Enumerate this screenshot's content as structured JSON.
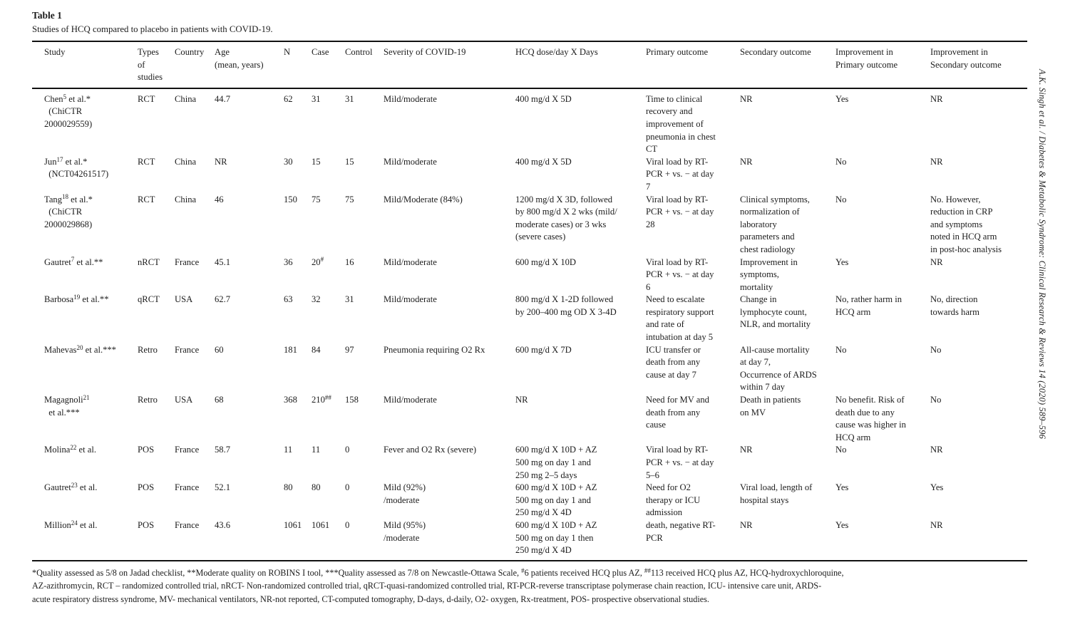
{
  "page": {
    "title": "Table 1",
    "caption": "Studies of HCQ compared to placebo in patients with COVID-19.",
    "journal_sidenote": "A.K. Singh et al. / Diabetes & Metabolic Syndrome: Clinical Research & Reviews 14 (2020) 589–596",
    "colors": {
      "text": "#1c1c1c",
      "rule": "#111111",
      "background": "#ffffff"
    }
  },
  "table": {
    "columns": [
      {
        "key": "study",
        "label": "Study"
      },
      {
        "key": "type",
        "label": "Types\nof\nstudies"
      },
      {
        "key": "country",
        "label": "Country"
      },
      {
        "key": "age",
        "label": "Age\n(mean, years)"
      },
      {
        "key": "n",
        "label": "N"
      },
      {
        "key": "cases",
        "label": "Case"
      },
      {
        "key": "control",
        "label": "Control"
      },
      {
        "key": "severity",
        "label": "Severity of COVID-19"
      },
      {
        "key": "dose",
        "label": "HCQ dose/day X Days"
      },
      {
        "key": "primary_outcome",
        "label": "Primary outcome"
      },
      {
        "key": "secondary_outcome",
        "label": "Secondary outcome"
      },
      {
        "key": "improvement_primary",
        "label": "Improvement in\nPrimary outcome"
      },
      {
        "key": "improvement_secondary",
        "label": "Improvement in\nSecondary outcome"
      }
    ],
    "rows": [
      {
        "study": "Chen^{5} et al.*\n  (ChiCTR\n2000029559)",
        "type": "RCT",
        "country": "China",
        "age": "44.7",
        "n": "62",
        "cases": "31",
        "control": "31",
        "severity": "Mild/moderate",
        "dose": "400 mg/d X 5D",
        "primary_outcome": "Time to clinical\nrecovery and\nimprovement of\npneumonia in chest\nCT",
        "secondary_outcome": "NR",
        "improvement_primary": "Yes",
        "improvement_secondary": "NR"
      },
      {
        "study": "Jun^{17} et al.*\n  (NCT04261517)",
        "type": "RCT",
        "country": "China",
        "age": "NR",
        "n": "30",
        "cases": "15",
        "control": "15",
        "severity": "Mild/moderate",
        "dose": "400 mg/d X 5D",
        "primary_outcome": "Viral load by RT-\nPCR + vs. − at day\n7",
        "secondary_outcome": "NR",
        "improvement_primary": "No",
        "improvement_secondary": "NR"
      },
      {
        "study": "Tang^{18} et al.*\n  (ChiCTR\n2000029868)",
        "type": "RCT",
        "country": "China",
        "age": "46",
        "n": "150",
        "cases": "75",
        "control": "75",
        "severity": "Mild/Moderate (84%)",
        "dose": "1200 mg/d X 3D, followed\nby 800 mg/d X 2 wks (mild/\nmoderate cases) or 3 wks\n(severe cases)",
        "primary_outcome": "Viral load by RT-\nPCR + vs. − at day\n28",
        "secondary_outcome": "Clinical symptoms,\nnormalization of\nlaboratory\nparameters and\nchest radiology",
        "improvement_primary": "No",
        "improvement_secondary": "No. However,\nreduction in CRP\nand symptoms\nnoted in HCQ arm\nin post-hoc analysis"
      },
      {
        "study": "Gautret^{7} et al.**",
        "type": "nRCT",
        "country": "France",
        "age": "45.1",
        "n": "36",
        "cases": "20^{#}",
        "control": "16",
        "severity": "Mild/moderate",
        "dose": "600 mg/d X 10D",
        "primary_outcome": "Viral load by RT-\nPCR + vs. − at day\n6",
        "secondary_outcome": "Improvement in\nsymptoms,\nmortality",
        "improvement_primary": "Yes",
        "improvement_secondary": "NR"
      },
      {
        "study": "Barbosa^{19} et al.**",
        "type": "qRCT",
        "country": "USA",
        "age": "62.7",
        "n": "63",
        "cases": "32",
        "control": "31",
        "severity": "Mild/moderate",
        "dose": "800 mg/d X 1-2D followed\nby 200–400 mg OD X 3-4D",
        "primary_outcome": "Need to escalate\nrespiratory support\nand rate of\nintubation at day 5",
        "secondary_outcome": "Change in\nlymphocyte count,\nNLR, and mortality",
        "improvement_primary": "No, rather harm in\nHCQ arm",
        "improvement_secondary": "No, direction\ntowards harm"
      },
      {
        "study": "Mahevas^{20} et al.***",
        "type": "Retro",
        "country": "France",
        "age": "60",
        "n": "181",
        "cases": "84",
        "control": "97",
        "severity": "Pneumonia requiring O2 Rx",
        "dose": "600 mg/d X 7D",
        "primary_outcome": "ICU transfer or\ndeath from any\ncause at day 7",
        "secondary_outcome": "All-cause mortality\nat day 7,\nOccurrence of ARDS\nwithin 7 day",
        "improvement_primary": "No",
        "improvement_secondary": "No"
      },
      {
        "study": "Magagnoli^{21}\n  et al.***",
        "type": "Retro",
        "country": "USA",
        "age": "68",
        "n": "368",
        "cases": "210^{##}",
        "control": "158",
        "severity": "Mild/moderate",
        "dose": "NR",
        "primary_outcome": "Need for MV and\ndeath from any\ncause",
        "secondary_outcome": "Death in patients\non MV",
        "improvement_primary": "No benefit. Risk of\ndeath due to any\ncause was higher in\nHCQ arm",
        "improvement_secondary": "No"
      },
      {
        "study": "Molina^{22} et al.",
        "type": "POS",
        "country": "France",
        "age": "58.7",
        "n": "11",
        "cases": "11",
        "control": "0",
        "severity": "Fever and O2 Rx (severe)",
        "dose": "600 mg/d X 10D + AZ\n500 mg on day 1 and\n250 mg 2–5 days",
        "primary_outcome": "Viral load by RT-\nPCR + vs. − at day\n5–6",
        "secondary_outcome": "NR",
        "improvement_primary": "No",
        "improvement_secondary": "NR"
      },
      {
        "study": "Gautret^{23} et al.",
        "type": "POS",
        "country": "France",
        "age": "52.1",
        "n": "80",
        "cases": "80",
        "control": "0",
        "severity": "Mild (92%)\n/moderate",
        "dose": "600 mg/d X 10D + AZ\n500 mg on day 1 and\n250 mg/d X 4D",
        "primary_outcome": "Need for O2\ntherapy or ICU\nadmission",
        "secondary_outcome": "Viral load, length of\nhospital stays",
        "improvement_primary": "Yes",
        "improvement_secondary": "Yes"
      },
      {
        "study": "Million^{24} et al.",
        "type": "POS",
        "country": "France",
        "age": "43.6",
        "n": "1061",
        "cases": "1061",
        "control": "0",
        "severity": "Mild (95%)\n/moderate",
        "dose": "600 mg/d X 10D + AZ\n500 mg on day 1 then\n250 mg/d X 4D",
        "primary_outcome": "death, negative RT-\nPCR",
        "secondary_outcome": "NR",
        "improvement_primary": "Yes",
        "improvement_secondary": "NR"
      }
    ],
    "footnotes": [
      "*Quality assessed as 5/8 on Jadad checklist, **Moderate quality on ROBINS I tool, ***Quality assessed as 7/8 on Newcastle-Ottawa Scale, ^{#}6 patients received HCQ plus AZ, ^{##}113 received HCQ plus AZ, HCQ-hydroxychloroquine,",
      "AZ-azithromycin, RCT – randomized controlled trial, nRCT- Non-randomized controlled trial, qRCT-quasi-randomized controlled trial, RT-PCR-reverse transcriptase polymerase chain reaction, ICU- intensive care unit, ARDS-",
      "acute respiratory distress syndrome, MV- mechanical ventilators, NR-not reported, CT-computed tomography, D-days, d-daily, O2- oxygen, Rx-treatment, POS- prospective observational studies."
    ]
  }
}
